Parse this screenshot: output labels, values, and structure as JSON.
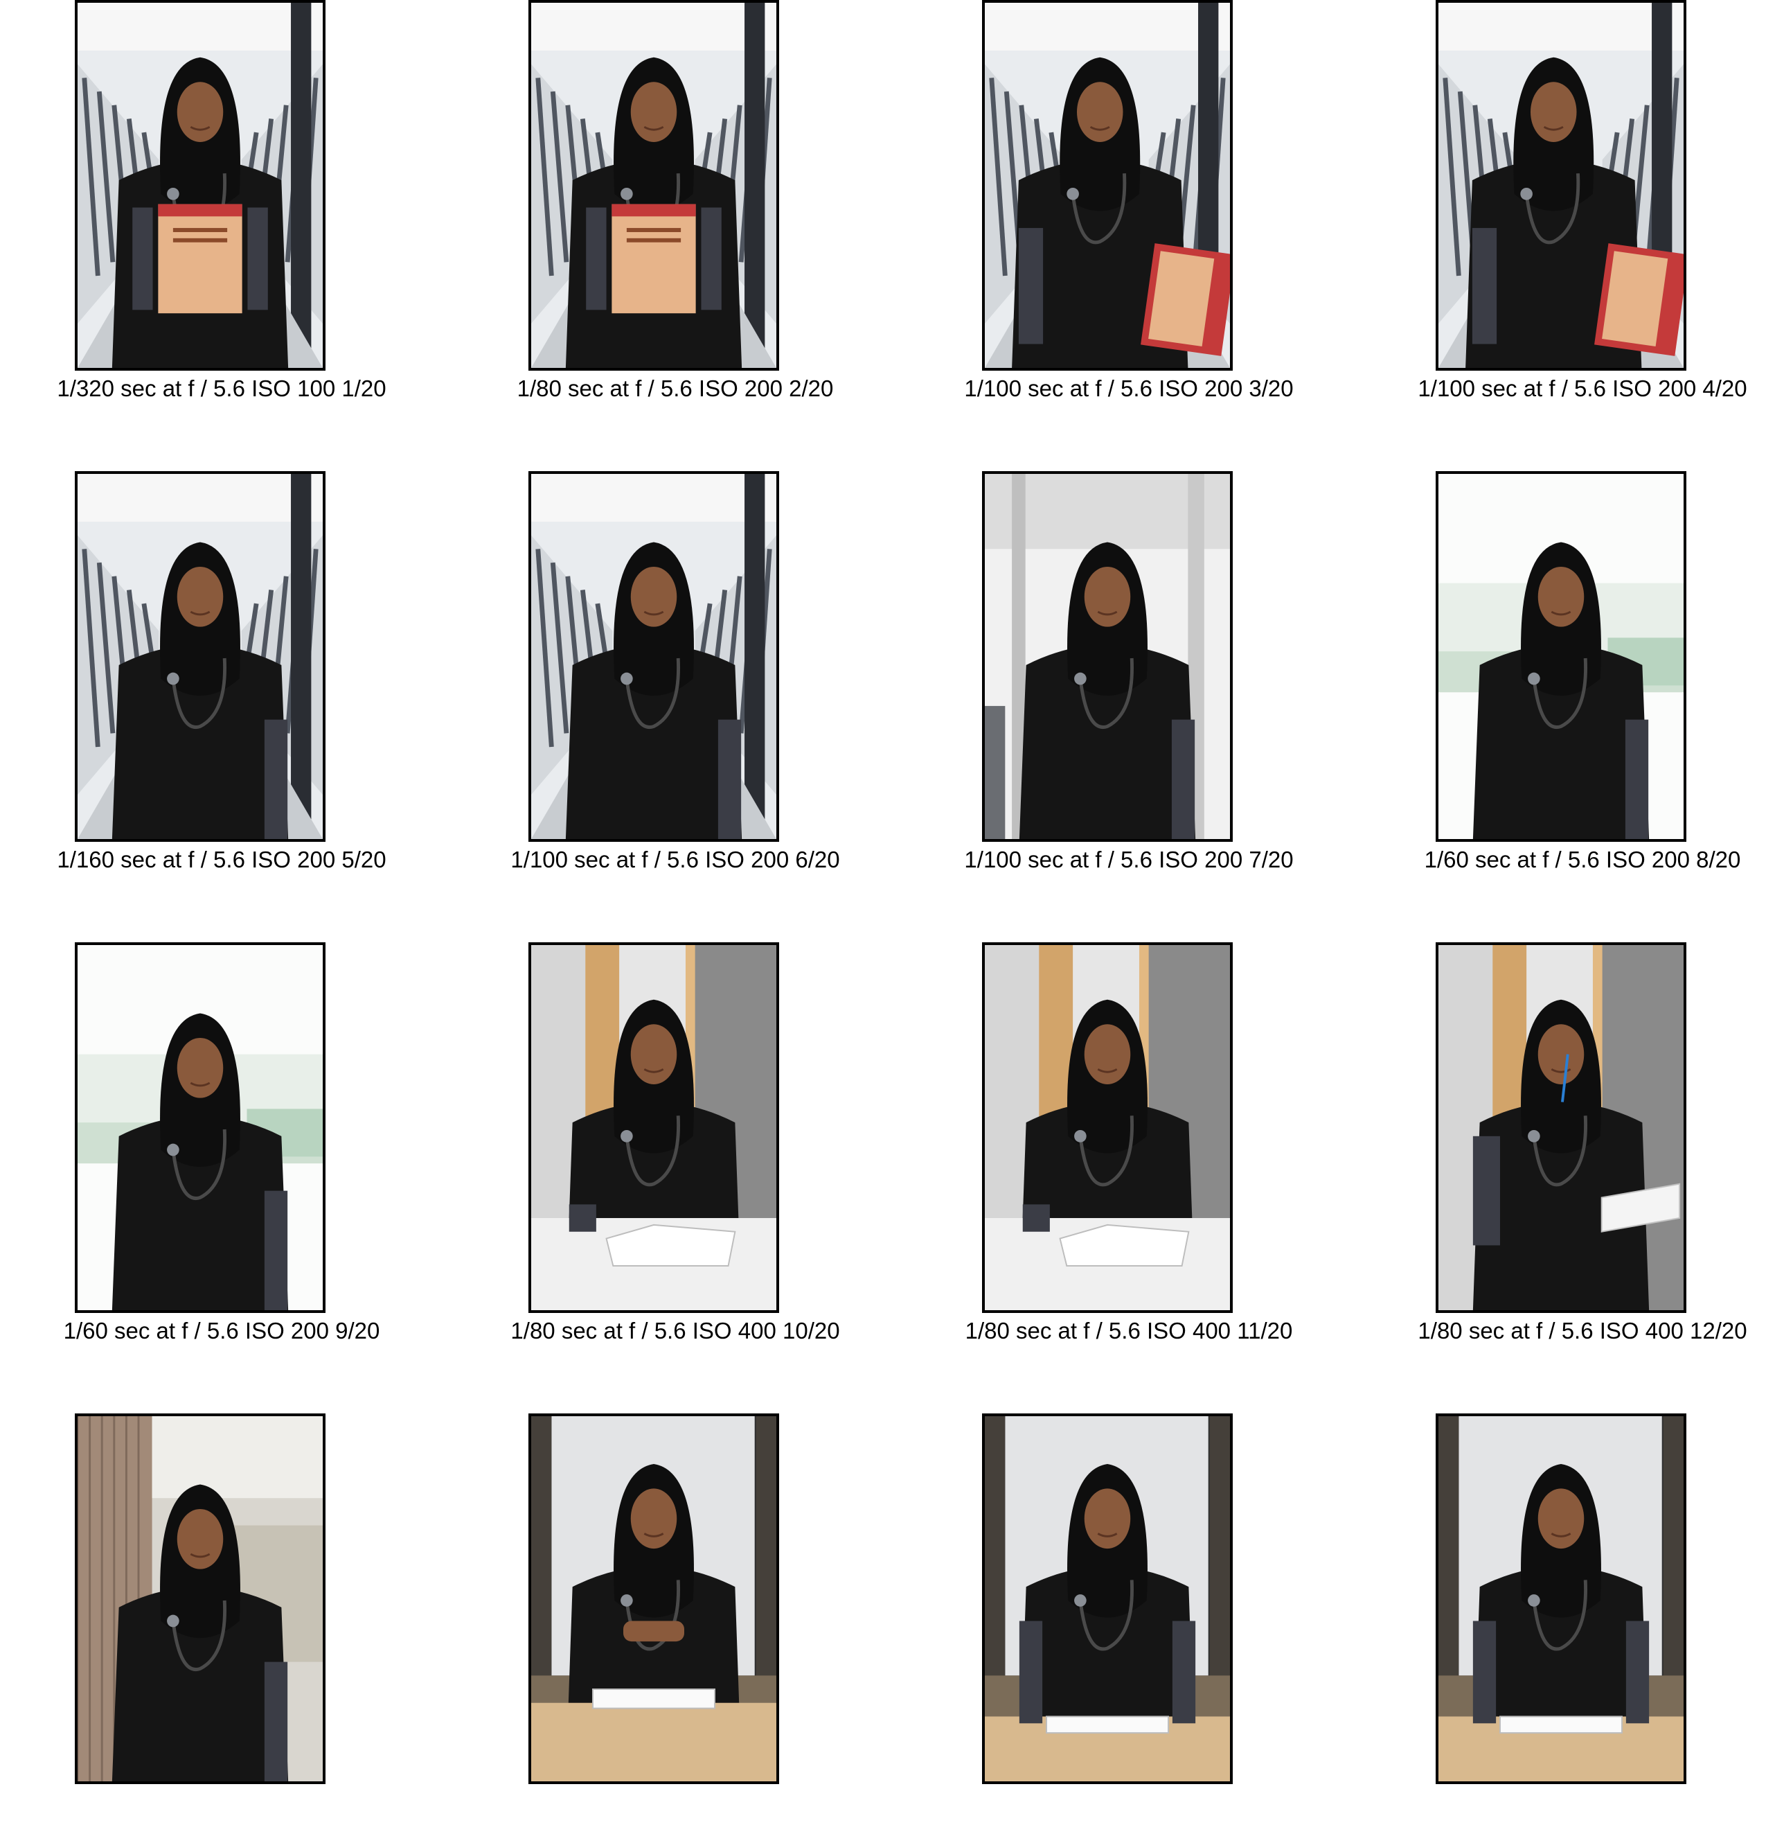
{
  "sheet": {
    "photos": [
      {
        "caption": "1/320 sec at f / 5.6 ISO 100 1/20",
        "scene": "bridge",
        "pose": "book-front"
      },
      {
        "caption": "1/80 sec at f / 5.6 ISO 200 2/20",
        "scene": "bridge",
        "pose": "book-front"
      },
      {
        "caption": "1/100 sec at f / 5.6 ISO 200 3/20",
        "scene": "bridge",
        "pose": "book-side"
      },
      {
        "caption": "1/100 sec at f / 5.6 ISO 200 4/20",
        "scene": "bridge",
        "pose": "book-side"
      },
      {
        "caption": "1/160 sec at f / 5.6 ISO 200 5/20",
        "scene": "bridge",
        "pose": "portrait"
      },
      {
        "caption": "1/100 sec at f / 5.6 ISO 200 6/20",
        "scene": "bridge",
        "pose": "portrait"
      },
      {
        "caption": "1/100 sec at f / 5.6 ISO 200 7/20",
        "scene": "atrium",
        "pose": "portrait"
      },
      {
        "caption": "1/60 sec at f / 5.6 ISO 200 8/20",
        "scene": "window",
        "pose": "portrait"
      },
      {
        "caption": "1/60 sec at f / 5.6 ISO 200 9/20",
        "scene": "window",
        "pose": "portrait"
      },
      {
        "caption": "1/80 sec at f / 5.6 ISO 400 10/20",
        "scene": "office",
        "pose": "desk-reading"
      },
      {
        "caption": "1/80 sec at f / 5.6 ISO 400 11/20",
        "scene": "office",
        "pose": "desk-reading"
      },
      {
        "caption": "1/80 sec at f / 5.6 ISO 400 12/20",
        "scene": "office",
        "pose": "standing-book"
      },
      {
        "caption": "",
        "scene": "hallway",
        "pose": "portrait"
      },
      {
        "caption": "",
        "scene": "room",
        "pose": "desk-hands"
      },
      {
        "caption": "",
        "scene": "room",
        "pose": "desk-standing"
      },
      {
        "caption": "",
        "scene": "room",
        "pose": "desk-standing"
      }
    ]
  },
  "colors": {
    "frame": "#000000",
    "caption_text": "#000000",
    "scrubs": "#151515",
    "hijab": "#0e0e0e",
    "skin": "#8a5a3c",
    "sleeve": "#3b3d46",
    "book_cover": "#e7b48a",
    "book_accent": "#c43a3a"
  }
}
